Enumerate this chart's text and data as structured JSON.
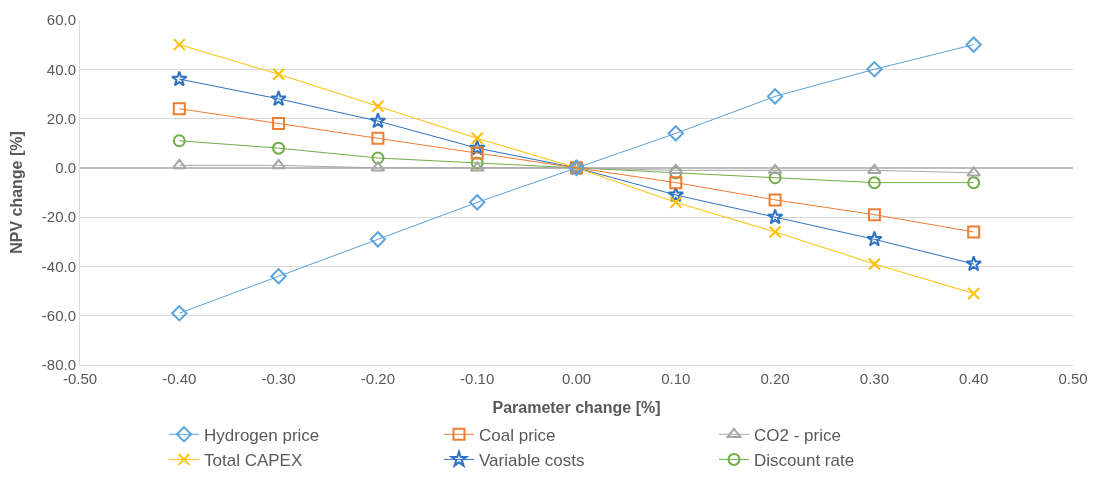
{
  "chart_data": {
    "type": "line",
    "xlabel": "Parameter change [%]",
    "ylabel": "NPV change [%]",
    "x": [
      -0.4,
      -0.3,
      -0.2,
      -0.1,
      0.0,
      0.1,
      0.2,
      0.3,
      0.4
    ],
    "xlim": [
      -0.5,
      0.5
    ],
    "xticks": [
      {
        "value": -0.5,
        "label": "-0.50"
      },
      {
        "value": -0.4,
        "label": "-0.40"
      },
      {
        "value": -0.3,
        "label": "-0.30"
      },
      {
        "value": -0.2,
        "label": "-0.20"
      },
      {
        "value": -0.1,
        "label": "-0.10"
      },
      {
        "value": 0,
        "label": "0.00"
      },
      {
        "value": 0.1,
        "label": "0.10"
      },
      {
        "value": 0.2,
        "label": "0.20"
      },
      {
        "value": 0.3,
        "label": "0.30"
      },
      {
        "value": 0.4,
        "label": "0.40"
      },
      {
        "value": 0.5,
        "label": "0.50"
      }
    ],
    "ylim": [
      -80,
      60
    ],
    "yticks": [
      {
        "value": -80,
        "label": "-80.0"
      },
      {
        "value": -60,
        "label": "-60.0"
      },
      {
        "value": -40,
        "label": "-40.0"
      },
      {
        "value": -20,
        "label": "-20.0"
      },
      {
        "value": 0,
        "label": "0.0"
      },
      {
        "value": 20,
        "label": "20.0"
      },
      {
        "value": 40,
        "label": "40.0"
      },
      {
        "value": 60,
        "label": "60.0"
      }
    ],
    "grid": "y",
    "legend": "bottom",
    "series": [
      {
        "name": "Hydrogen price",
        "color": "#5ba3dc",
        "marker": "diamond",
        "values": [
          -59,
          -44,
          -29,
          -14,
          0,
          14,
          29,
          40,
          50
        ]
      },
      {
        "name": "Coal price",
        "color": "#ed7d31",
        "marker": "square",
        "values": [
          24,
          18,
          12,
          6,
          0,
          -6,
          -13,
          -19,
          -26
        ]
      },
      {
        "name": "CO2 - price",
        "color": "#a5a5a5",
        "marker": "triangle",
        "values": [
          1,
          1,
          0,
          0,
          0,
          -1,
          -1,
          -1,
          -2
        ]
      },
      {
        "name": "Total CAPEX",
        "color": "#ffc000",
        "marker": "cross",
        "values": [
          50,
          38,
          25,
          12,
          0,
          -14,
          -26,
          -39,
          -51
        ]
      },
      {
        "name": "Variable costs",
        "color": "#2e72c4",
        "marker": "star",
        "values": [
          36,
          28,
          19,
          8,
          0,
          -11,
          -20,
          -29,
          -39
        ]
      },
      {
        "name": "Discount rate",
        "color": "#70ad47",
        "marker": "circle",
        "values": [
          11,
          8,
          4,
          2,
          0,
          -2,
          -4,
          -6,
          -6
        ]
      }
    ]
  }
}
